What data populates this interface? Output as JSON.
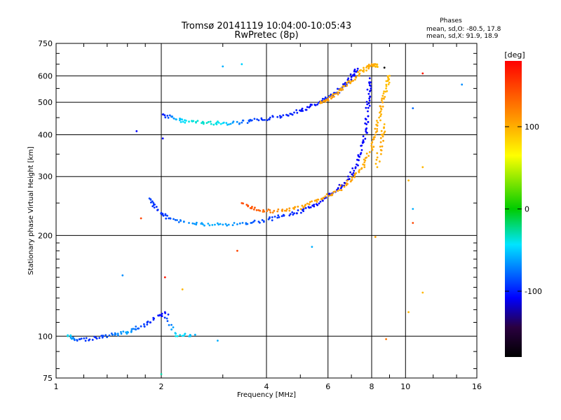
{
  "chart_data": {
    "type": "scatter",
    "title": "Tromsø 20141119 10:04:00-10:05:43",
    "subtitle": "RwPretec (8p)",
    "xlabel": "Frequency [MHz]",
    "ylabel": "Stationary phase Virtual Height [km]",
    "x_scale": "log",
    "y_scale": "log",
    "xlim": [
      1,
      16
    ],
    "ylim": [
      75,
      750
    ],
    "x_ticks": [
      1,
      2,
      4,
      6,
      8,
      10,
      16
    ],
    "y_ticks": [
      75,
      100,
      200,
      300,
      400,
      500,
      600,
      750
    ],
    "grid": true,
    "phase_box": {
      "heading": "Phases",
      "line_o": "mean, sd,O:  -80.5, 17.8",
      "line_x": "mean, sd,X:   91.9, 18.9"
    },
    "colorbar": {
      "label": "[deg]",
      "range": [
        -180,
        180
      ],
      "ticks": [
        100,
        0,
        -100
      ],
      "colors": [
        "#ff0000",
        "#ffff00",
        "#00cc00",
        "#00e5ff",
        "#0000ff",
        "#000000"
      ]
    },
    "series": [
      {
        "points": [
          [
            2.02,
            460,
            -110
          ],
          [
            2.2,
            445,
            -60
          ],
          [
            2.4,
            438,
            -40
          ],
          [
            2.7,
            434,
            -35
          ],
          [
            3.0,
            433,
            -45
          ],
          [
            3.4,
            435,
            -80
          ],
          [
            3.8,
            442,
            -95
          ],
          [
            4.3,
            452,
            -100
          ],
          [
            4.8,
            466,
            -100
          ],
          [
            5.3,
            483,
            -110
          ],
          [
            5.8,
            505,
            -100
          ],
          [
            6.2,
            525,
            -100
          ],
          [
            6.6,
            555,
            -105
          ],
          [
            7.0,
            595,
            -110
          ],
          [
            7.3,
            630,
            -110
          ],
          [
            1.85,
            258,
            -90
          ],
          [
            1.95,
            238,
            -100
          ],
          [
            2.1,
            225,
            -90
          ],
          [
            2.4,
            218,
            -70
          ],
          [
            2.8,
            215,
            -60
          ],
          [
            3.3,
            216,
            -70
          ],
          [
            3.8,
            220,
            -90
          ],
          [
            4.3,
            226,
            -95
          ],
          [
            4.8,
            233,
            -100
          ],
          [
            5.3,
            242,
            -105
          ],
          [
            5.8,
            254,
            -110
          ],
          [
            6.3,
            270,
            -110
          ],
          [
            6.8,
            292,
            -115
          ],
          [
            7.2,
            320,
            -110
          ],
          [
            7.5,
            360,
            -110
          ],
          [
            7.7,
            410,
            -110
          ],
          [
            7.8,
            470,
            -110
          ],
          [
            7.85,
            530,
            -110
          ],
          [
            7.9,
            590,
            -110
          ],
          [
            1.08,
            100,
            -40
          ],
          [
            1.15,
            97,
            -90
          ],
          [
            1.3,
            99,
            -100
          ],
          [
            1.45,
            101,
            -80
          ],
          [
            1.6,
            103,
            -60
          ],
          [
            1.75,
            107,
            -90
          ],
          [
            1.9,
            112,
            -100
          ],
          [
            2.05,
            118,
            -110
          ],
          [
            2.2,
            100,
            -40
          ],
          [
            2.5,
            101,
            -60
          ]
        ]
      },
      {
        "points": [
          [
            5.7,
            497,
            110
          ],
          [
            6.0,
            512,
            115
          ],
          [
            6.4,
            535,
            110
          ],
          [
            6.8,
            562,
            105
          ],
          [
            7.2,
            595,
            110
          ],
          [
            7.6,
            625,
            100
          ],
          [
            8.0,
            650,
            110
          ],
          [
            8.3,
            640,
            95
          ],
          [
            3.4,
            250,
            150
          ],
          [
            3.8,
            238,
            140
          ],
          [
            4.3,
            236,
            120
          ],
          [
            4.8,
            240,
            110
          ],
          [
            5.3,
            248,
            110
          ],
          [
            5.8,
            258,
            110
          ],
          [
            6.4,
            272,
            110
          ],
          [
            7.0,
            292,
            110
          ],
          [
            7.5,
            318,
            105
          ],
          [
            7.9,
            355,
            105
          ],
          [
            8.2,
            400,
            110
          ],
          [
            8.4,
            450,
            100
          ],
          [
            8.6,
            500,
            110
          ],
          [
            8.8,
            550,
            95
          ],
          [
            9.0,
            600,
            100
          ],
          [
            8.3,
            320,
            100
          ],
          [
            8.5,
            380,
            110
          ],
          [
            8.7,
            430,
            100
          ]
        ]
      }
    ],
    "scattered_points": [
      [
        3.0,
        640,
        -60
      ],
      [
        3.4,
        650,
        -50
      ],
      [
        1.7,
        410,
        -110
      ],
      [
        2.02,
        390,
        -110
      ],
      [
        1.75,
        225,
        150
      ],
      [
        3.3,
        180,
        150
      ],
      [
        5.4,
        185,
        -60
      ],
      [
        1.55,
        152,
        -70
      ],
      [
        2.05,
        150,
        170
      ],
      [
        2.3,
        138,
        100
      ],
      [
        2.0,
        77,
        -30
      ],
      [
        2.9,
        97,
        -60
      ],
      [
        10.5,
        480,
        -80
      ],
      [
        10.5,
        240,
        -60
      ],
      [
        10.5,
        218,
        150
      ],
      [
        11.2,
        320,
        100
      ],
      [
        11.2,
        135,
        100
      ],
      [
        11.2,
        610,
        170
      ],
      [
        10.2,
        292,
        100
      ],
      [
        10.2,
        118,
        100
      ],
      [
        8.8,
        98,
        130
      ],
      [
        8.7,
        635,
        -180
      ],
      [
        14.5,
        565,
        -70
      ],
      [
        8.2,
        198,
        110
      ]
    ]
  }
}
